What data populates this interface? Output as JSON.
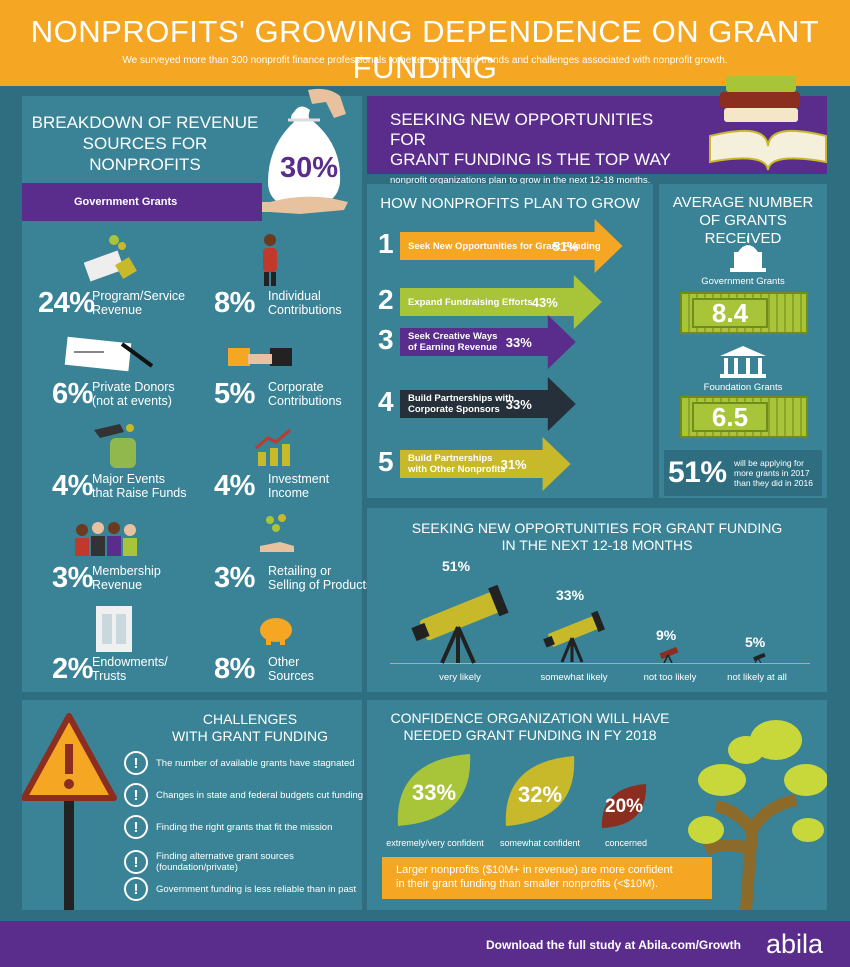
{
  "header": {
    "title": "NONPROFITS' GROWING DEPENDENCE ON GRANT FUNDING",
    "subtitle": "We surveyed more than 300 nonprofit finance professionals to better understand trends and challenges associated with nonprofit growth."
  },
  "revenue": {
    "title_1": "BREAKDOWN OF REVENUE",
    "title_2": "SOURCES FOR NONPROFITS",
    "bag_pct": "30%",
    "banner": "Government Grants",
    "items": [
      {
        "pct": "24%",
        "l1": "Program/Service",
        "l2": "Revenue"
      },
      {
        "pct": "8%",
        "l1": "Individual",
        "l2": "Contributions"
      },
      {
        "pct": "6%",
        "l1": "Private Donors",
        "l2": "(not at events)"
      },
      {
        "pct": "5%",
        "l1": "Corporate",
        "l2": "Contributions"
      },
      {
        "pct": "4%",
        "l1": "Major Events",
        "l2": "that Raise Funds"
      },
      {
        "pct": "4%",
        "l1": "Investment",
        "l2": "Income"
      },
      {
        "pct": "3%",
        "l1": "Membership",
        "l2": "Revenue"
      },
      {
        "pct": "3%",
        "l1": "Retailing or",
        "l2": "Selling of Products"
      },
      {
        "pct": "2%",
        "l1": "Endowments/",
        "l2": "Trusts"
      },
      {
        "pct": "8%",
        "l1": "Other",
        "l2": "Sources"
      }
    ]
  },
  "seeking_banner": {
    "l1": "SEEKING NEW OPPORTUNITIES FOR",
    "l2": "GRANT FUNDING IS THE TOP WAY",
    "l3": "nonprofit organizations plan to grow in the next 12-18 months."
  },
  "grow": {
    "title": "HOW NONPROFITS PLAN TO GROW",
    "items": [
      {
        "num": "1",
        "l1": "Seek New Opportunities for Grant Funding",
        "l2": "",
        "pct": "51%",
        "color": "#f5a623",
        "value": 51
      },
      {
        "num": "2",
        "l1": "Expand Fundraising Efforts",
        "l2": "",
        "pct": "43%",
        "color": "#a8c53a",
        "value": 43
      },
      {
        "num": "3",
        "l1": "Seek Creative Ways",
        "l2": "of Earning Revenue",
        "pct": "33%",
        "color": "#5a2d8c",
        "value": 33
      },
      {
        "num": "4",
        "l1": "Build Partnerships with",
        "l2": "Corporate Sponsors",
        "pct": "33%",
        "color": "#25303a",
        "value": 33
      },
      {
        "num": "5",
        "l1": "Build Partnerships",
        "l2": "with Other Nonprofits",
        "pct": "31%",
        "color": "#c8b92a",
        "value": 31
      }
    ]
  },
  "avg": {
    "title_1": "AVERAGE NUMBER",
    "title_2": "OF GRANTS RECEIVED",
    "gov_label": "Government Grants",
    "gov_value": "8.4",
    "found_label": "Foundation Grants",
    "found_value": "6.5",
    "stat_pct": "51%",
    "stat_l1": "will be applying for",
    "stat_l2": "more grants in 2017",
    "stat_l3": "than they did in 2016"
  },
  "telescope": {
    "title_1": "SEEKING NEW OPPORTUNITIES FOR GRANT FUNDING",
    "title_2": "IN THE NEXT 12-18 MONTHS",
    "items": [
      {
        "pct": "51%",
        "label": "very likely"
      },
      {
        "pct": "33%",
        "label": "somewhat likely"
      },
      {
        "pct": "9%",
        "label": "not too likely"
      },
      {
        "pct": "5%",
        "label": "not likely at all"
      }
    ]
  },
  "challenges": {
    "title_1": "CHALLENGES",
    "title_2": "WITH GRANT FUNDING",
    "items": [
      {
        "l1": "The number of available grants have stagnated",
        "l2": ""
      },
      {
        "l1": "Changes in state and federal budgets cut funding",
        "l2": ""
      },
      {
        "l1": "Finding the right grants that fit the mission",
        "l2": ""
      },
      {
        "l1": "Finding alternative grant sources",
        "l2": "(foundation/private)"
      },
      {
        "l1": "Government funding is less reliable than in past",
        "l2": ""
      }
    ]
  },
  "confidence": {
    "title_1": "CONFIDENCE ORGANIZATION WILL HAVE",
    "title_2": "NEEDED GRANT FUNDING IN FY 2018",
    "items": [
      {
        "pct": "33%",
        "label": "extremely/very confident"
      },
      {
        "pct": "32%",
        "label": "somewhat confident"
      },
      {
        "pct": "20%",
        "label": "concerned"
      }
    ],
    "note_1": "Larger nonprofits ($10M+ in revenue) are more confident",
    "note_2": "in their grant funding than smaller nonprofits (<$10M)."
  },
  "footer": {
    "cta": "Download the full study at Abila.com/Growth",
    "logo": "abila"
  },
  "colors": {
    "orange": "#f5a623",
    "green": "#a8c53a",
    "purple": "#5a2d8c",
    "teal": "#3a8396",
    "bg": "#2e6e80",
    "red": "#8b2d1f"
  }
}
